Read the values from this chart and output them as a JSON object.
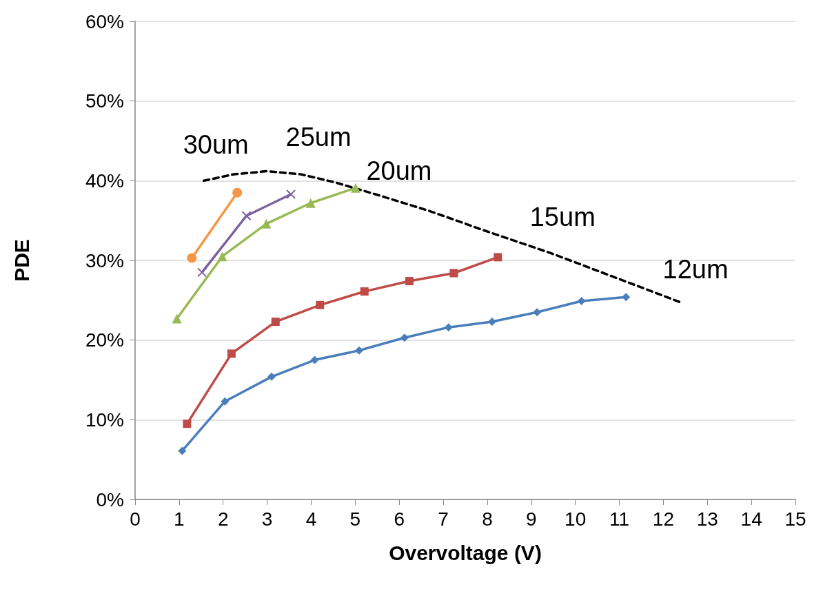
{
  "chart_data": {
    "type": "line",
    "xlabel": "Overvoltage (V)",
    "ylabel": "PDE",
    "xlim": [
      0,
      15
    ],
    "xticks": [
      0,
      1,
      2,
      3,
      4,
      5,
      6,
      7,
      8,
      9,
      10,
      11,
      12,
      13,
      14,
      15
    ],
    "ylim": [
      0,
      60
    ],
    "yticks": [
      {
        "value": 0,
        "label": "0%"
      },
      {
        "value": 10,
        "label": "10%"
      },
      {
        "value": 20,
        "label": "20%"
      },
      {
        "value": 30,
        "label": "30%"
      },
      {
        "value": 40,
        "label": "40%"
      },
      {
        "value": 50,
        "label": "50%"
      },
      {
        "value": 60,
        "label": "60%"
      }
    ],
    "grid": "y",
    "line_style": "solid",
    "series": [
      {
        "name": "12um",
        "color": "#4a7ebb",
        "marker": "diamond",
        "x": [
          1.07,
          2.04,
          3.1,
          4.08,
          5.09,
          6.12,
          7.12,
          8.11,
          9.13,
          10.14,
          11.15
        ],
        "values": [
          6.1,
          12.3,
          15.4,
          17.5,
          18.7,
          20.3,
          21.6,
          22.3,
          23.5,
          24.9,
          25.4
        ]
      },
      {
        "name": "15um",
        "color": "#be4b48",
        "marker": "square",
        "x": [
          1.18,
          2.19,
          3.19,
          4.2,
          5.21,
          6.23,
          7.24,
          8.24
        ],
        "values": [
          9.5,
          18.3,
          22.3,
          24.4,
          26.1,
          27.4,
          28.4,
          30.4
        ]
      },
      {
        "name": "20um",
        "color": "#98b954",
        "marker": "triangle",
        "x": [
          0.95,
          1.98,
          2.98,
          3.99,
          5.01
        ],
        "values": [
          22.7,
          30.5,
          34.6,
          37.2,
          39.1
        ]
      },
      {
        "name": "25um",
        "color": "#7d60a0",
        "marker": "cross",
        "x": [
          1.52,
          2.53,
          3.54
        ],
        "values": [
          28.5,
          35.6,
          38.3
        ]
      },
      {
        "name": "30um",
        "color": "#f79646",
        "marker": "circle",
        "x": [
          1.29,
          2.32
        ],
        "values": [
          30.3,
          38.5
        ]
      },
      {
        "color": "#000000",
        "marker": "none",
        "line_style": "dashed",
        "x": [
          1.56,
          2.24,
          3.0,
          3.77,
          4.54,
          5.46,
          6.69,
          7.91,
          9.45,
          10.98,
          12.36
        ],
        "values": [
          40.0,
          40.8,
          41.2,
          40.8,
          39.8,
          38.3,
          36.2,
          33.8,
          30.9,
          27.7,
          24.8
        ]
      }
    ]
  }
}
